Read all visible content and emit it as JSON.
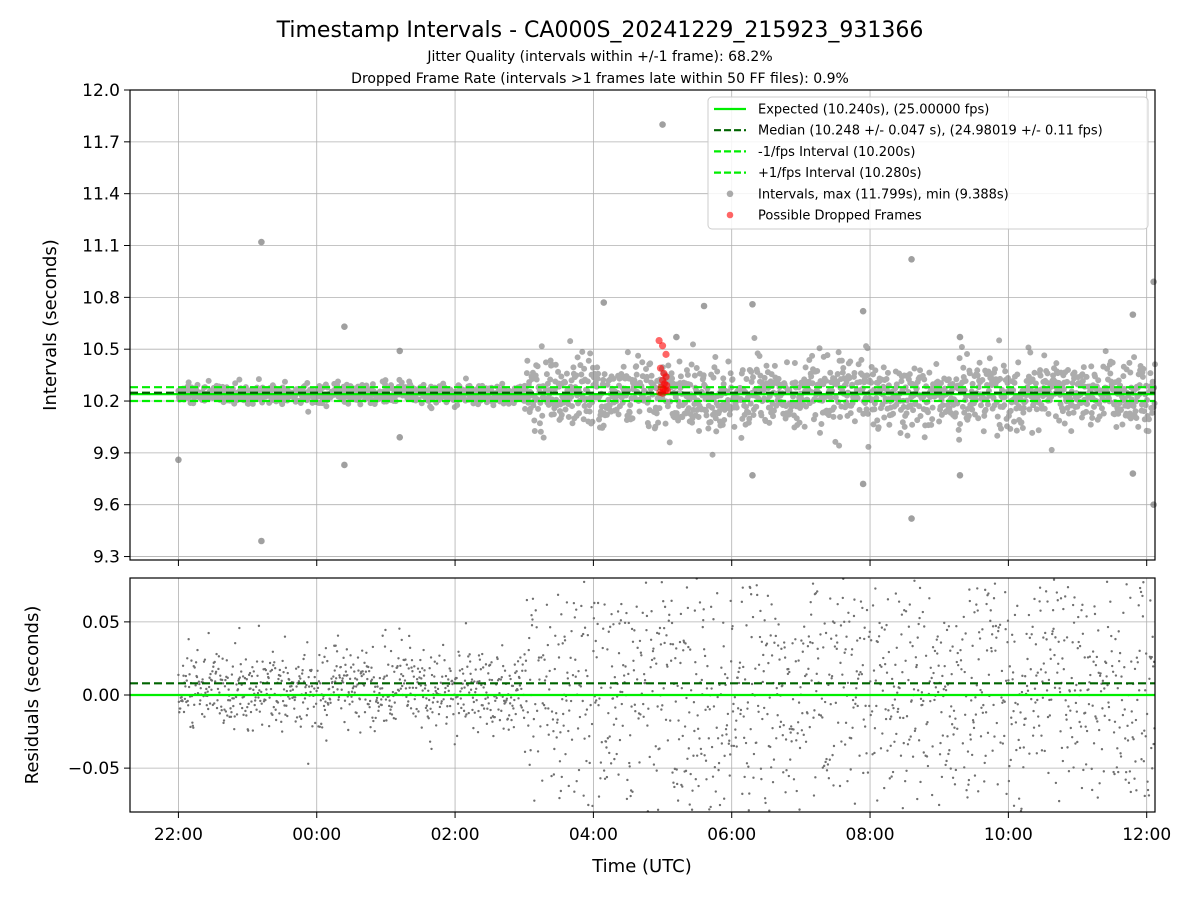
{
  "chart_data": {
    "type": "scatter",
    "title": "Timestamp Intervals - CA000S_20241229_215923_931366",
    "subtitle_lines": [
      "Jitter Quality (intervals within +/-1 frame): 68.2%",
      "Dropped Frame Rate (intervals >1 frames late within 50 FF files): 0.9%"
    ],
    "xlabel": "Time (UTC)",
    "x_ticks": [
      "22:00",
      "00:00",
      "02:00",
      "04:00",
      "06:00",
      "08:00",
      "10:00",
      "12:00"
    ],
    "x_tick_hours": [
      22,
      24,
      26,
      28,
      30,
      32,
      34,
      36
    ],
    "x_range_hours": [
      21.3,
      36.12
    ],
    "grid": true,
    "panels": [
      {
        "name": "intervals",
        "ylabel": "Intervals (seconds)",
        "ylim": [
          9.28,
          12.0
        ],
        "y_ticks": [
          "9.3",
          "9.6",
          "9.9",
          "10.2",
          "10.5",
          "10.8",
          "11.1",
          "11.4",
          "11.7",
          "12.0"
        ],
        "y_tick_values": [
          9.3,
          9.6,
          9.9,
          10.2,
          10.5,
          10.8,
          11.1,
          11.4,
          11.7,
          12.0
        ],
        "lines": [
          {
            "label": "Expected (10.240s), (25.00000 fps)",
            "y": 10.24,
            "color": "#00ee00",
            "style": "solid"
          },
          {
            "label": "Median (10.248 +/- 0.047 s), (24.98019 +/- 0.11 fps)",
            "y": 10.248,
            "color": "#006400",
            "style": "dashed"
          },
          {
            "label": "-1/fps Interval (10.200s)",
            "y": 10.2,
            "color": "#00ee00",
            "style": "dashed"
          },
          {
            "label": "+1/fps Interval (10.280s)",
            "y": 10.28,
            "color": "#00ee00",
            "style": "dashed"
          }
        ],
        "scatter_series": [
          {
            "label": "Intervals, max (11.799s), min (9.388s)",
            "color": "#808080",
            "max": 11.799,
            "min": 9.388
          },
          {
            "label": "Possible Dropped Frames",
            "color": "#ff0000"
          }
        ],
        "legend_position": "top-right",
        "notable_points": [
          {
            "x": 22.0,
            "y": 9.86
          },
          {
            "x": 23.2,
            "y": 11.12
          },
          {
            "x": 23.2,
            "y": 9.39
          },
          {
            "x": 24.4,
            "y": 10.63
          },
          {
            "x": 24.4,
            "y": 9.83
          },
          {
            "x": 25.2,
            "y": 10.49
          },
          {
            "x": 25.2,
            "y": 9.99
          },
          {
            "x": 28.15,
            "y": 10.77
          },
          {
            "x": 29.0,
            "y": 11.8
          },
          {
            "x": 29.2,
            "y": 10.57
          },
          {
            "x": 29.6,
            "y": 10.75
          },
          {
            "x": 30.3,
            "y": 10.76
          },
          {
            "x": 30.3,
            "y": 9.77
          },
          {
            "x": 31.9,
            "y": 10.72
          },
          {
            "x": 31.9,
            "y": 9.72
          },
          {
            "x": 32.6,
            "y": 11.02
          },
          {
            "x": 32.6,
            "y": 9.52
          },
          {
            "x": 33.3,
            "y": 10.57
          },
          {
            "x": 33.3,
            "y": 9.77
          },
          {
            "x": 35.8,
            "y": 10.7
          },
          {
            "x": 35.8,
            "y": 9.78
          },
          {
            "x": 36.1,
            "y": 10.89
          },
          {
            "x": 36.1,
            "y": 9.6
          }
        ],
        "dropped_frames": [
          {
            "x": 28.95,
            "y": 10.55
          },
          {
            "x": 29.0,
            "y": 10.52
          },
          {
            "x": 29.05,
            "y": 10.47
          },
          {
            "x": 28.97,
            "y": 10.39
          },
          {
            "x": 29.02,
            "y": 10.36
          },
          {
            "x": 29.05,
            "y": 10.34
          },
          {
            "x": 29.0,
            "y": 10.32
          },
          {
            "x": 29.03,
            "y": 10.3
          },
          {
            "x": 29.06,
            "y": 10.29
          },
          {
            "x": 28.98,
            "y": 10.28
          },
          {
            "x": 29.01,
            "y": 10.27
          },
          {
            "x": 29.04,
            "y": 10.26
          },
          {
            "x": 29.07,
            "y": 10.26
          },
          {
            "x": 28.96,
            "y": 10.25
          },
          {
            "x": 29.0,
            "y": 10.245
          }
        ]
      },
      {
        "name": "residuals",
        "ylabel": "Residuals (seconds)",
        "ylim": [
          -0.08,
          0.08
        ],
        "y_ticks": [
          "−0.05",
          "0.00",
          "0.05"
        ],
        "y_tick_values": [
          -0.05,
          0.0,
          0.05
        ],
        "lines": [
          {
            "y": 0.0,
            "color": "#00ee00",
            "style": "solid"
          },
          {
            "y": 0.008,
            "color": "#006400",
            "style": "dashed"
          }
        ],
        "scatter_color": "#707070",
        "spread_by_period": [
          {
            "x_start": 22.0,
            "x_end": 27.0,
            "std": 0.014
          },
          {
            "x_start": 27.0,
            "x_end": 36.12,
            "std": 0.05
          }
        ]
      }
    ]
  }
}
